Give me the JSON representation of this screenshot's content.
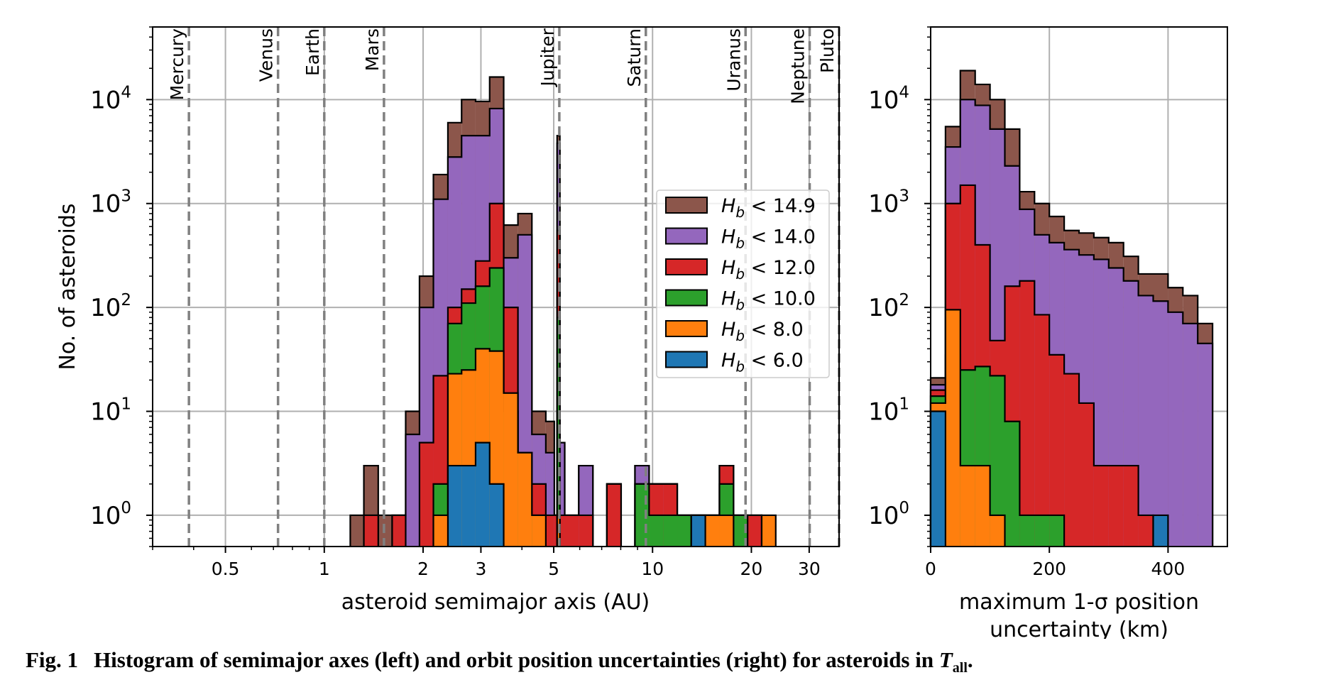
{
  "figure": {
    "caption_number": "Fig. 1",
    "caption_text": "Histogram of semimajor axes (left) and orbit position uncertainties (right) for asteroids in ",
    "caption_symbol": "T",
    "caption_sub": "all",
    "caption_end": "."
  },
  "colors": {
    "hb_14_9": "#8c564b",
    "hb_14_0": "#9467bd",
    "hb_12_0": "#d62728",
    "hb_10_0": "#2ca02c",
    "hb_8_0": "#ff7f0e",
    "hb_6_0": "#1f77b4"
  },
  "chart_data": [
    {
      "type": "bar",
      "xscale": "log",
      "yscale": "log",
      "xlabel": "asteroid semimajor axis (AU)",
      "ylabel": "No. of asteroids",
      "xlim": [
        0.3,
        37
      ],
      "ylim": [
        0.5,
        50000
      ],
      "xticks": [
        {
          "v": 0.5,
          "label": "0.5"
        },
        {
          "v": 1,
          "label": "1"
        },
        {
          "v": 2,
          "label": "2"
        },
        {
          "v": 3,
          "label": "3"
        },
        {
          "v": 5,
          "label": "5"
        },
        {
          "v": 10,
          "label": "10"
        },
        {
          "v": 20,
          "label": "20"
        },
        {
          "v": 30,
          "label": "30"
        }
      ],
      "yticks": [
        {
          "v": 1,
          "base": "10",
          "exp": "0"
        },
        {
          "v": 10,
          "base": "10",
          "exp": "1"
        },
        {
          "v": 100,
          "base": "10",
          "exp": "2"
        },
        {
          "v": 1000,
          "base": "10",
          "exp": "3"
        },
        {
          "v": 10000,
          "base": "10",
          "exp": "4"
        }
      ],
      "grid": true,
      "legend_position": "right",
      "planets": [
        {
          "name": "Mercury",
          "a": 0.387
        },
        {
          "name": "Venus",
          "a": 0.723
        },
        {
          "name": "Earth",
          "a": 1.0
        },
        {
          "name": "Mars",
          "a": 1.52
        },
        {
          "name": "Jupiter",
          "a": 5.2
        },
        {
          "name": "Saturn",
          "a": 9.54
        },
        {
          "name": "Uranus",
          "a": 19.2
        },
        {
          "name": "Neptune",
          "a": 30.1
        },
        {
          "name": "Pluto",
          "a": 39.5
        }
      ],
      "bin_edges": [
        1.2,
        1.32,
        1.46,
        1.61,
        1.77,
        1.95,
        2.15,
        2.38,
        2.62,
        2.89,
        3.19,
        3.52,
        3.89,
        4.29,
        4.73,
        5.02,
        5.12,
        5.22,
        5.4,
        5.96,
        6.58,
        7.26,
        8.02,
        8.84,
        9.76,
        10.77,
        11.89,
        13.12,
        14.48,
        15.99,
        17.65,
        19.48,
        21.5,
        23.73
      ],
      "series": [
        {
          "name": "H_b < 14.9",
          "color_key": "hb_14_9",
          "values": [
            1,
            3,
            1,
            1,
            10,
            200,
            1900,
            6000,
            10000,
            9600,
            16500,
            620,
            800,
            10,
            8,
            1,
            4500,
            5,
            1,
            3,
            0,
            2,
            0,
            3,
            2,
            2,
            1,
            1,
            1,
            3,
            1,
            1,
            0
          ]
        },
        {
          "name": "H_b < 14.0",
          "color_key": "hb_14_0",
          "values": [
            0,
            1,
            0,
            1,
            6,
            100,
            1100,
            2800,
            4500,
            4500,
            8200,
            300,
            500,
            6,
            4,
            1,
            3800,
            5,
            1,
            3,
            0,
            2,
            0,
            3,
            2,
            2,
            1,
            1,
            1,
            3,
            1,
            1,
            0
          ]
        },
        {
          "name": "H_b < 12.0",
          "color_key": "hb_12_0",
          "values": [
            0,
            1,
            0,
            1,
            0,
            5,
            22,
            100,
            150,
            280,
            1000,
            100,
            4,
            2,
            1,
            1,
            550,
            1,
            1,
            1,
            0,
            2,
            0,
            2,
            2,
            2,
            1,
            1,
            1,
            3,
            1,
            1,
            0
          ]
        },
        {
          "name": "H_b < 10.0",
          "color_key": "hb_10_0",
          "values": [
            0,
            0,
            0,
            0,
            0,
            0,
            2,
            70,
            110,
            160,
            240,
            10,
            4,
            1,
            0,
            0,
            80,
            0,
            0,
            0,
            0,
            0,
            0,
            2,
            1,
            1,
            1,
            1,
            1,
            2,
            1,
            0,
            0
          ]
        },
        {
          "name": "H_b < 8.0",
          "color_key": "hb_8_0",
          "values": [
            0,
            0,
            0,
            0,
            0,
            0,
            1,
            23,
            25,
            40,
            38,
            15,
            4,
            1,
            0,
            0,
            1,
            0,
            0,
            0,
            0,
            0,
            0,
            0,
            0,
            0,
            0,
            1,
            1,
            1,
            0,
            0,
            1
          ]
        },
        {
          "name": "H_b < 6.0",
          "color_key": "hb_6_0",
          "values": [
            0,
            0,
            0,
            0,
            0,
            0,
            0,
            3,
            3,
            5,
            2,
            0,
            0,
            0,
            0,
            0,
            0,
            0,
            0,
            0,
            0,
            0,
            0,
            0,
            0,
            0,
            0,
            1,
            0,
            0,
            0,
            0,
            0
          ]
        }
      ],
      "legend": [
        {
          "label": "H_b < 14.9",
          "sym": "H",
          "sub": "b",
          "rest": " < 14.9",
          "color_key": "hb_14_9"
        },
        {
          "label": "H_b < 14.0",
          "sym": "H",
          "sub": "b",
          "rest": " < 14.0",
          "color_key": "hb_14_0"
        },
        {
          "label": "H_b < 12.0",
          "sym": "H",
          "sub": "b",
          "rest": " < 12.0",
          "color_key": "hb_12_0"
        },
        {
          "label": "H_b < 10.0",
          "sym": "H",
          "sub": "b",
          "rest": " < 10.0",
          "color_key": "hb_10_0"
        },
        {
          "label": "H_b < 8.0",
          "sym": "H",
          "sub": "b",
          "rest": " < 8.0",
          "color_key": "hb_8_0"
        },
        {
          "label": "H_b < 6.0",
          "sym": "H",
          "sub": "b",
          "rest": " < 6.0",
          "color_key": "hb_6_0"
        }
      ]
    },
    {
      "type": "bar",
      "xscale": "linear",
      "yscale": "log",
      "xlabel_line1": "maximum 1-σ position",
      "xlabel_line2": "uncertainty (km)",
      "xlim": [
        0,
        500
      ],
      "ylim": [
        0.5,
        50000
      ],
      "xticks": [
        {
          "v": 0,
          "label": "0"
        },
        {
          "v": 200,
          "label": "200"
        },
        {
          "v": 400,
          "label": "400"
        }
      ],
      "yticks": [
        {
          "v": 1,
          "base": "10",
          "exp": "0"
        },
        {
          "v": 10,
          "base": "10",
          "exp": "1"
        },
        {
          "v": 100,
          "base": "10",
          "exp": "2"
        },
        {
          "v": 1000,
          "base": "10",
          "exp": "3"
        },
        {
          "v": 10000,
          "base": "10",
          "exp": "4"
        }
      ],
      "grid": true,
      "bin_edges": [
        0,
        25,
        50,
        75,
        100,
        125,
        150,
        175,
        200,
        225,
        250,
        275,
        300,
        325,
        350,
        375,
        400,
        425,
        450,
        475
      ],
      "series": [
        {
          "name": "H_b < 14.9",
          "color_key": "hb_14_9",
          "values": [
            21,
            5500,
            19000,
            14000,
            10000,
            5200,
            1300,
            1000,
            750,
            550,
            520,
            470,
            420,
            310,
            210,
            210,
            155,
            130,
            70
          ]
        },
        {
          "name": "H_b < 14.0",
          "color_key": "hb_14_0",
          "values": [
            18,
            3500,
            10000,
            8800,
            5200,
            2300,
            880,
            500,
            420,
            360,
            320,
            290,
            240,
            180,
            130,
            115,
            90,
            70,
            45
          ]
        },
        {
          "name": "H_b < 12.0",
          "color_key": "hb_12_0",
          "values": [
            16,
            1000,
            1500,
            400,
            48,
            160,
            180,
            85,
            35,
            23,
            12,
            3,
            3,
            3,
            1,
            0,
            0,
            0,
            0
          ]
        },
        {
          "name": "H_b < 10.0",
          "color_key": "hb_10_0",
          "values": [
            14,
            35,
            25,
            27,
            22,
            8,
            1,
            1,
            1,
            0,
            0,
            0,
            0,
            0,
            0,
            0,
            0,
            0,
            0
          ]
        },
        {
          "name": "H_b < 8.0",
          "color_key": "hb_8_0",
          "values": [
            12,
            95,
            3,
            3,
            1,
            0,
            0,
            0,
            0,
            0,
            0,
            0,
            0,
            0,
            0,
            0,
            0,
            0,
            0
          ]
        },
        {
          "name": "H_b < 6.0",
          "color_key": "hb_6_0",
          "values": [
            10,
            0,
            0,
            0,
            0,
            0,
            0,
            0,
            0,
            0,
            0,
            0,
            0,
            0,
            0,
            1,
            0,
            0,
            0
          ]
        }
      ]
    }
  ]
}
